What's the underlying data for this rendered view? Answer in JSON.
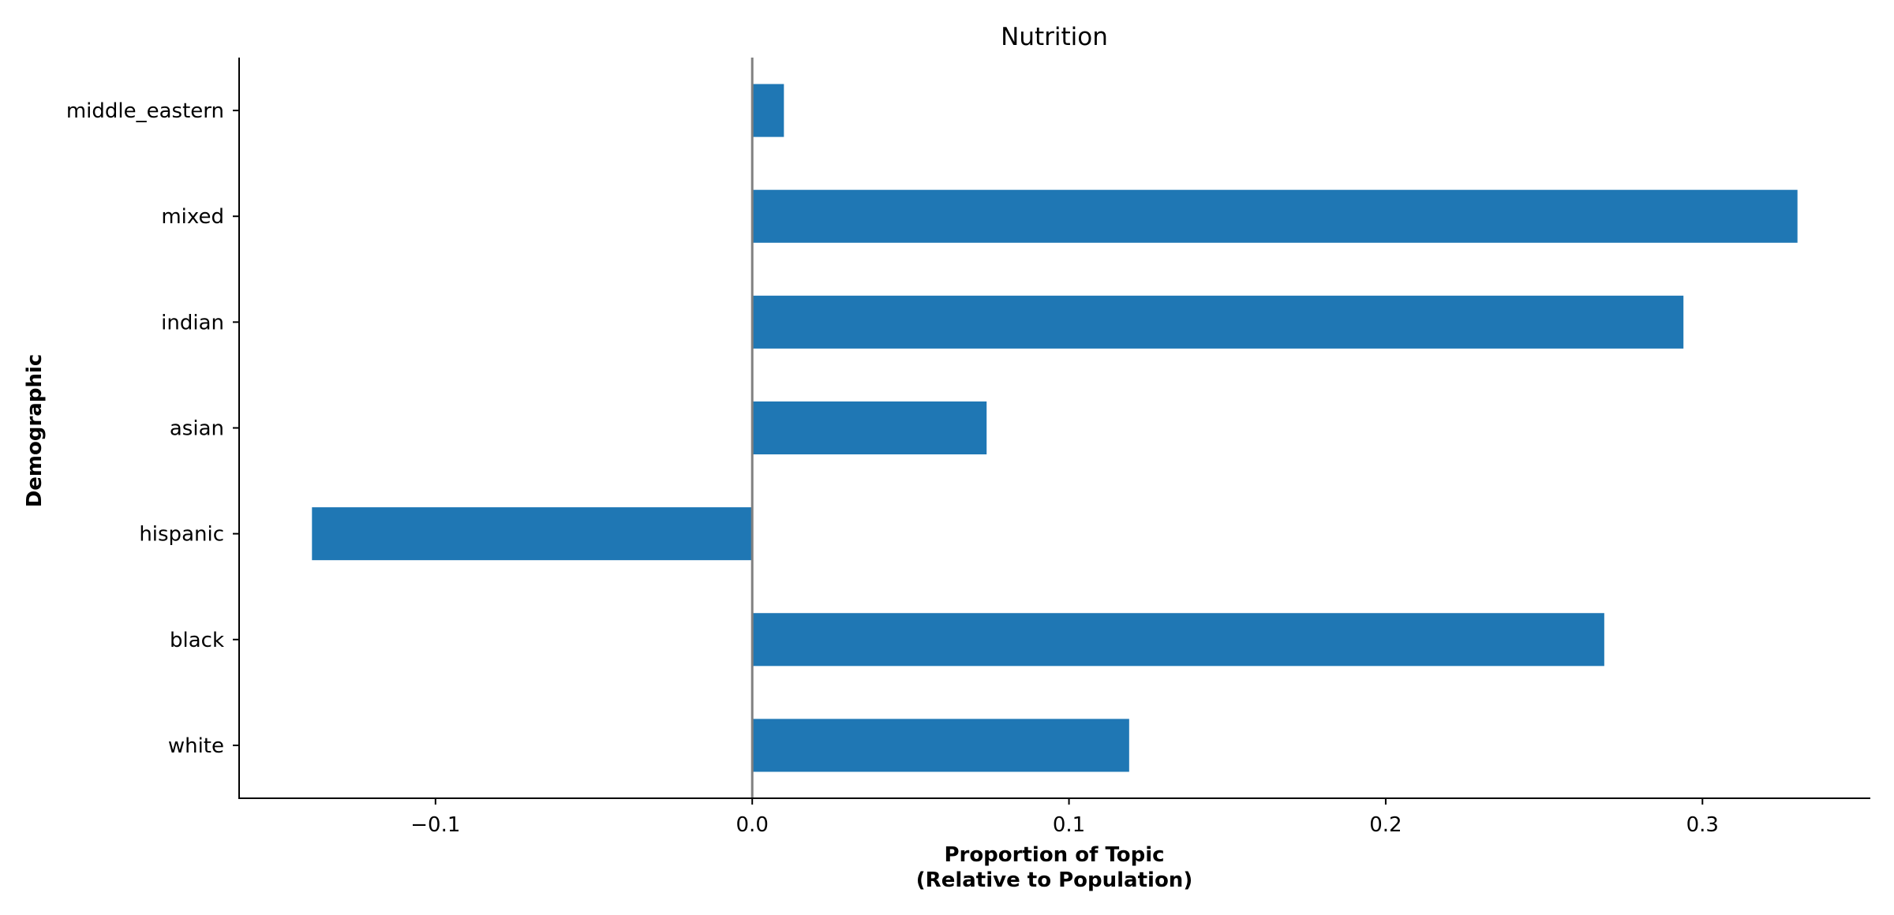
{
  "chart_data": {
    "type": "bar",
    "orientation": "horizontal",
    "title": "Nutrition",
    "xlabel_lines": [
      "Proportion of Topic",
      "(Relative to Population)"
    ],
    "ylabel": "Demographic",
    "categories": [
      "white",
      "black",
      "hispanic",
      "asian",
      "indian",
      "mixed",
      "middle_eastern"
    ],
    "values": [
      0.119,
      0.269,
      -0.139,
      0.074,
      0.294,
      0.33,
      0.01
    ],
    "xlim": [
      -0.162,
      0.353
    ],
    "xticks": [
      -0.1,
      0.0,
      0.1,
      0.2,
      0.3
    ],
    "xtick_labels": [
      "−0.1",
      "0.0",
      "0.1",
      "0.2",
      "0.3"
    ],
    "zero_line": true,
    "grid": false,
    "colors": {
      "bar": "#1f77b4",
      "zero_line": "#808080",
      "axis": "#000000"
    }
  }
}
